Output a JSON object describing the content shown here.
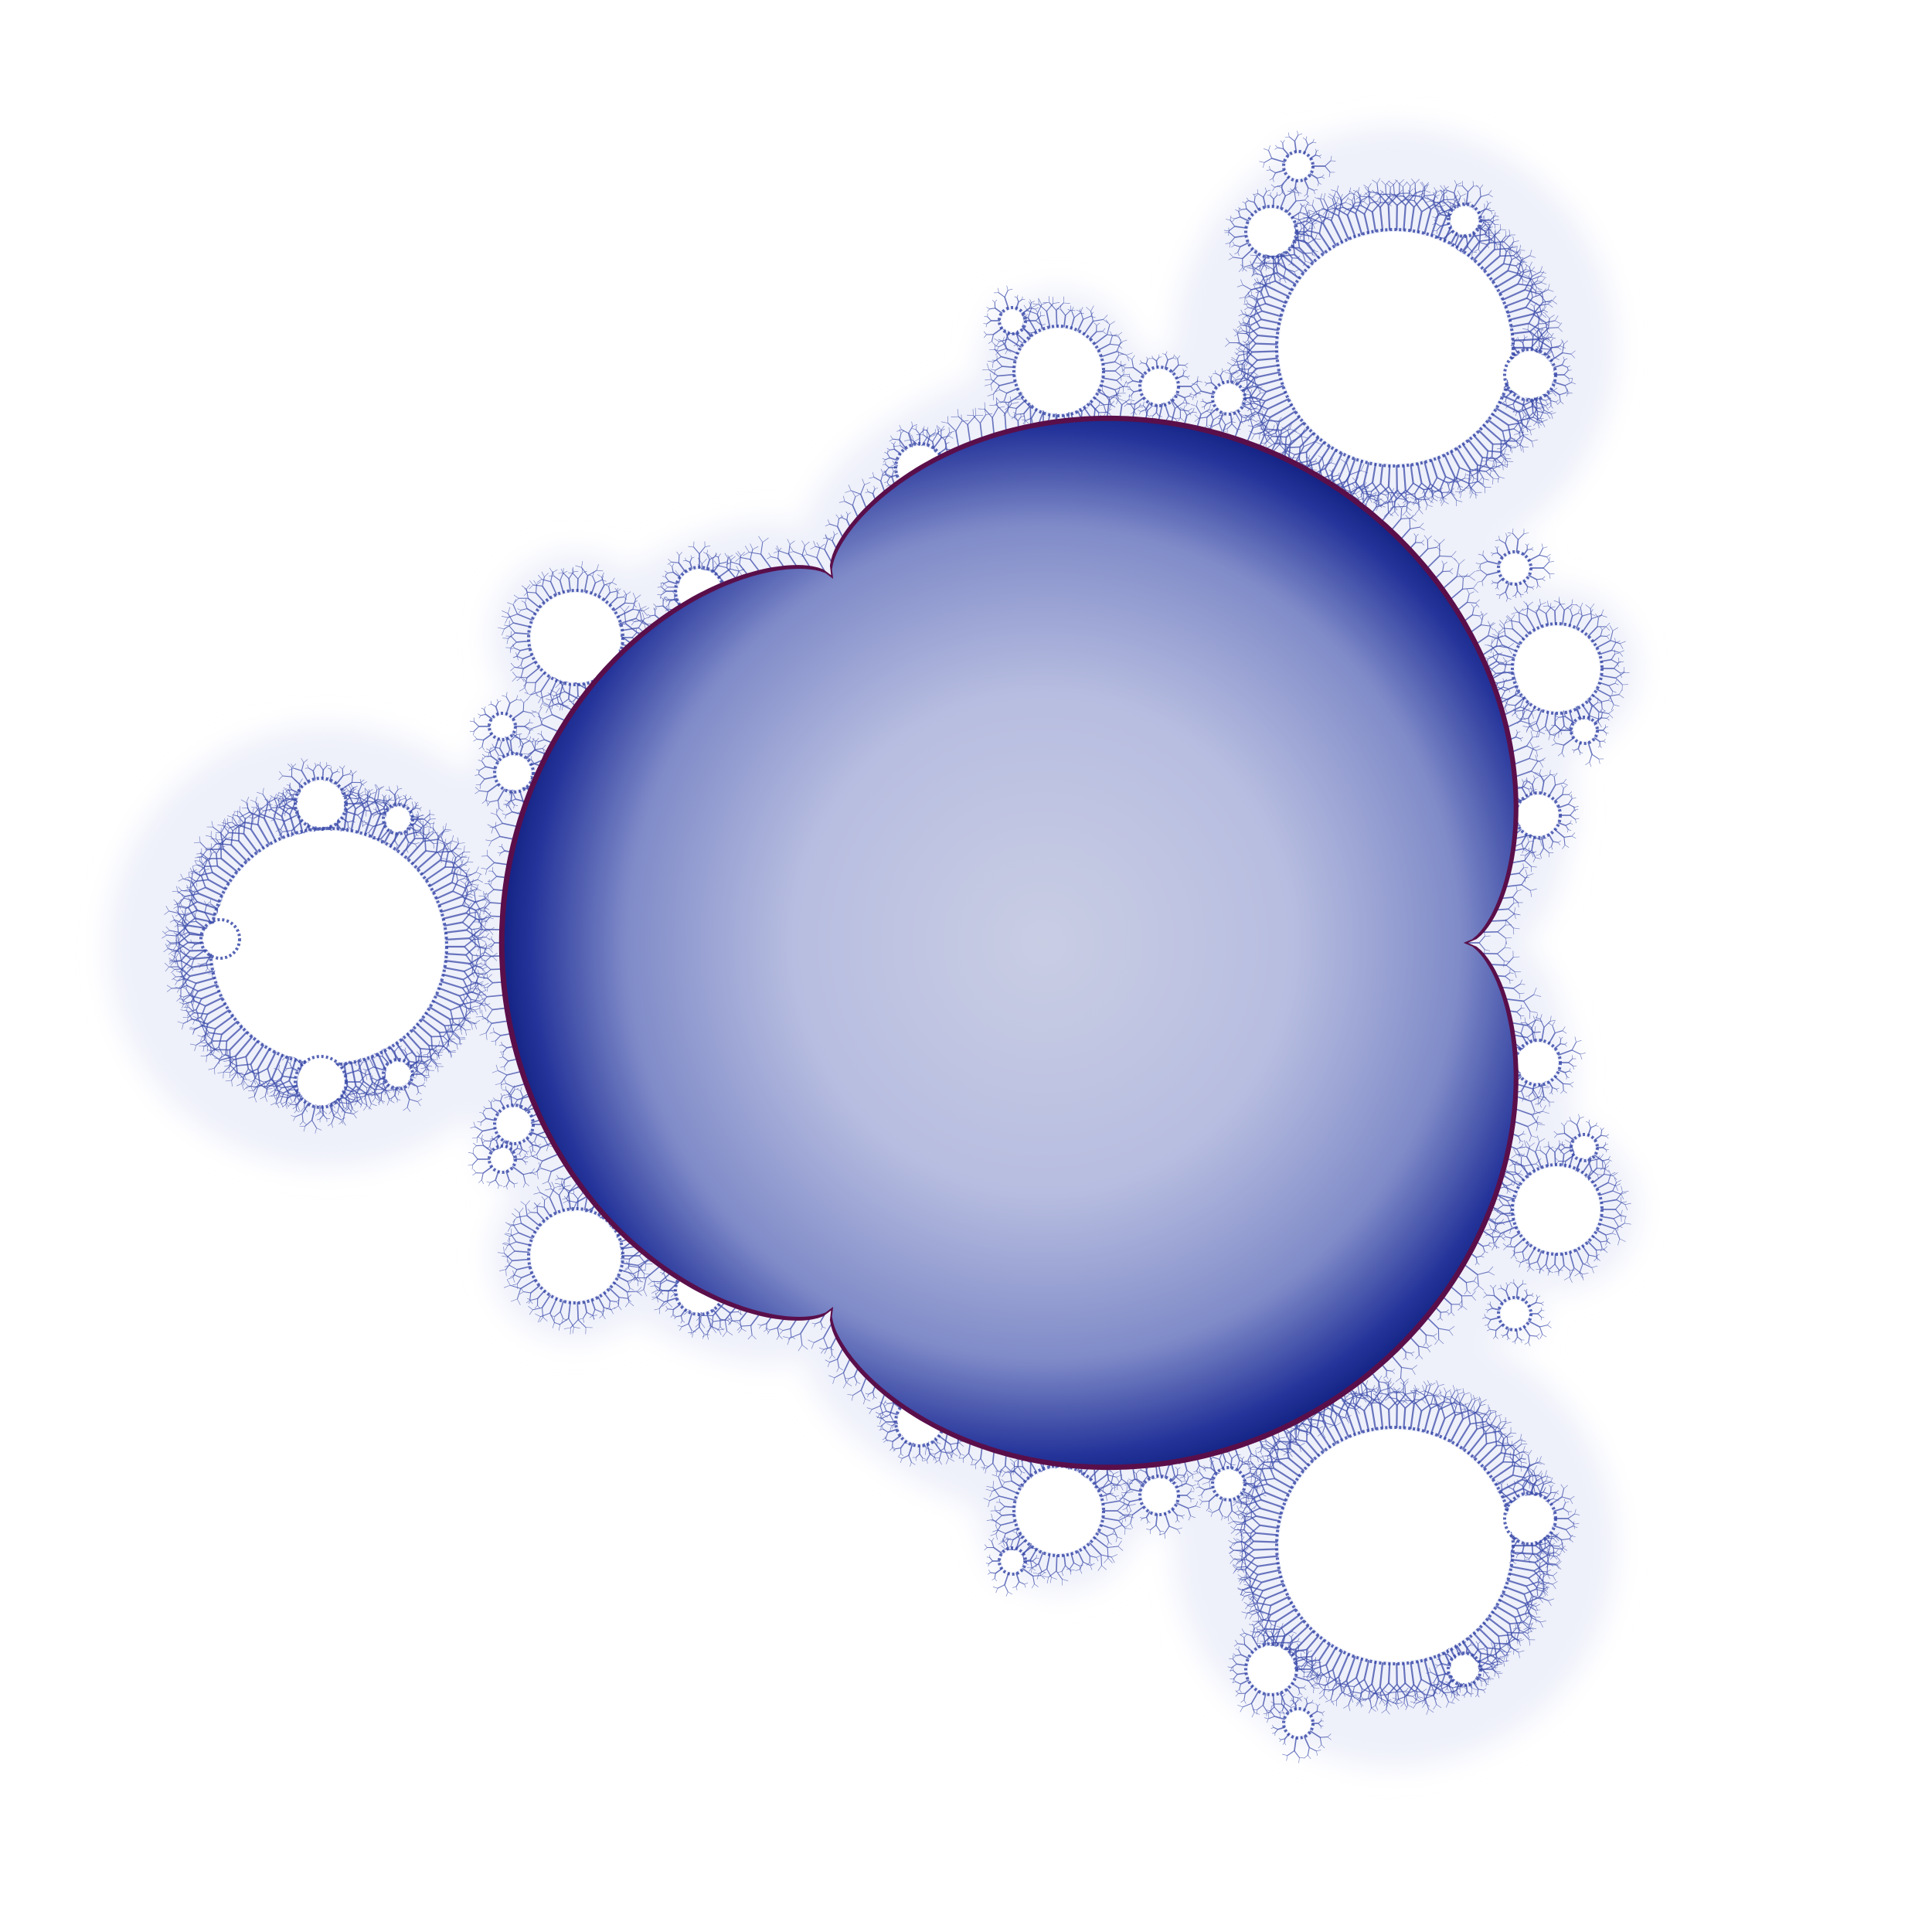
{
  "image": {
    "subject": "multibrot-set-degree-4",
    "background_color": "#ffffff",
    "colors": {
      "interior_center": "#c9cde4",
      "interior_edge": "#0a1a78",
      "boundary_rim": "#5a0f4a",
      "filament": "#3a4aa8",
      "halo": "#eef0fa",
      "bulb_fill": "#ffffff"
    }
  }
}
